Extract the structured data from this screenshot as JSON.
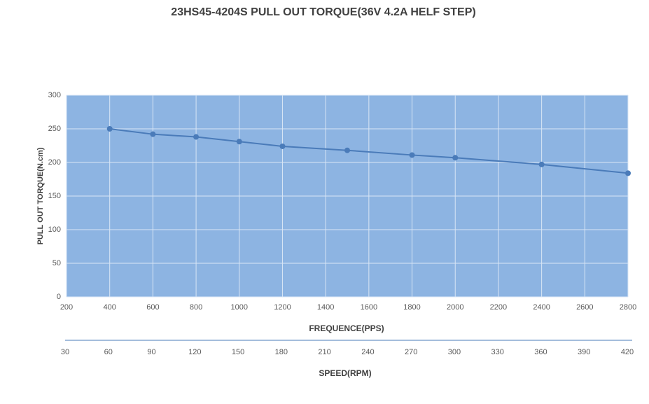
{
  "chart_data": {
    "type": "line",
    "title": "23HS45-4204S  PULL OUT TORQUE(36V   4.2A      HELF STEP)",
    "x_label": "FREQUENCE(PPS)",
    "y_label": "PULL OUT TORQUE(N.cm)",
    "x2_label": "SPEED(RPM)",
    "x": [
      400,
      600,
      800,
      1000,
      1200,
      1500,
      1800,
      2000,
      2400,
      2800
    ],
    "values": [
      250,
      242,
      238,
      231,
      224,
      218,
      211,
      207,
      197,
      184
    ],
    "color": "#4a7bb9",
    "plot_background": "#8db4e2",
    "xlim": [
      200,
      2800
    ],
    "xticks": [
      200,
      400,
      600,
      800,
      1000,
      1200,
      1400,
      1600,
      1800,
      2000,
      2200,
      2400,
      2600,
      2800
    ],
    "ylim": [
      0,
      300
    ],
    "yticks": [
      0,
      50,
      100,
      150,
      200,
      250,
      300
    ],
    "x2lim": [
      30,
      420
    ],
    "x2ticks": [
      30,
      60,
      90,
      120,
      150,
      180,
      210,
      240,
      270,
      300,
      330,
      360,
      390,
      420
    ],
    "grid": true
  }
}
